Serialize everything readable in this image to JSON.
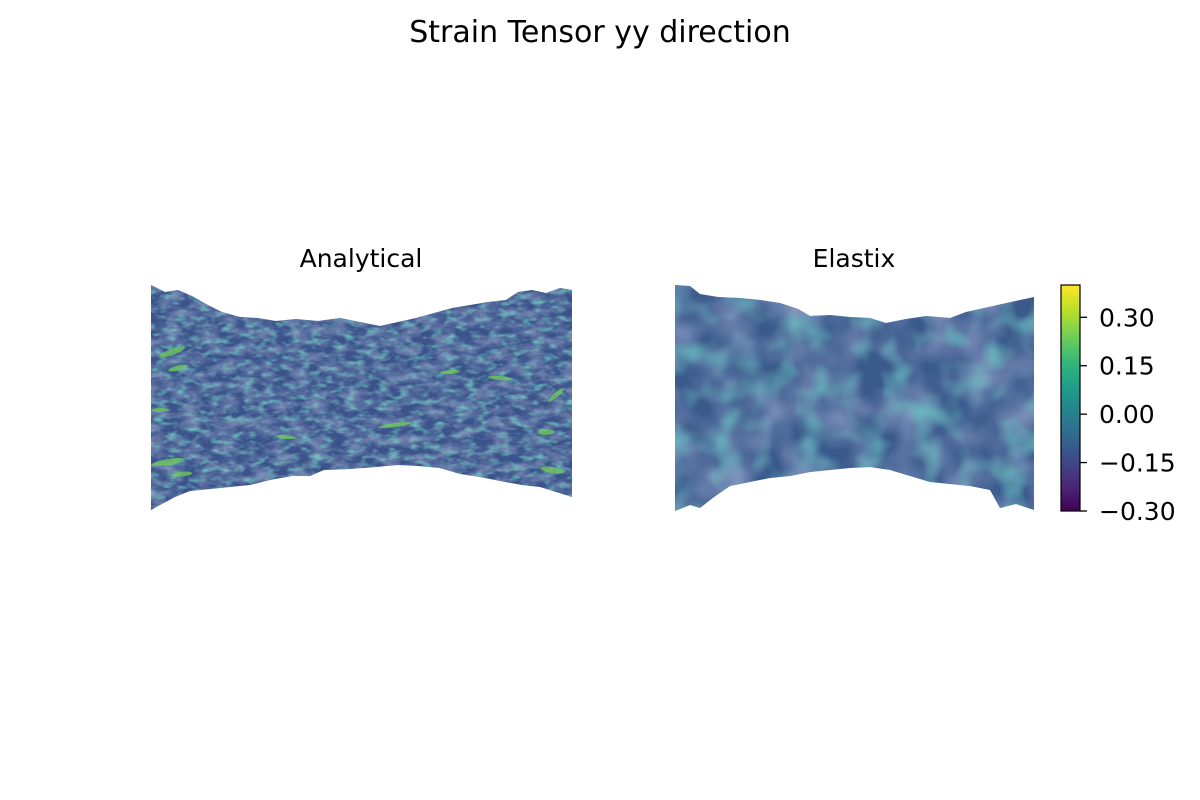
{
  "figure": {
    "title": "Strain Tensor yy direction"
  },
  "chart_data": [
    {
      "type": "heatmap",
      "title": "Analytical",
      "xlabel": "",
      "ylabel": "",
      "axes_visible": false,
      "colormap": "viridis",
      "value_range": [
        -0.3,
        0.4
      ],
      "typical_value": -0.08,
      "texture": "fine, streaky, high-variance"
    },
    {
      "type": "heatmap",
      "title": "Elastix",
      "xlabel": "",
      "ylabel": "",
      "axes_visible": false,
      "colormap": "viridis",
      "value_range": [
        -0.3,
        0.4
      ],
      "typical_value": -0.05,
      "texture": "smooth, blobby, low-variance"
    }
  ],
  "colorbar": {
    "colormap": "viridis",
    "range": [
      -0.3,
      0.4
    ],
    "ticks": [
      {
        "value": 0.3,
        "label": "0.30"
      },
      {
        "value": 0.15,
        "label": "0.15"
      },
      {
        "value": 0.0,
        "label": "0.00"
      },
      {
        "value": -0.15,
        "label": "−0.15"
      },
      {
        "value": -0.3,
        "label": "−0.30"
      }
    ]
  },
  "colors": {
    "viridis": [
      "#440154",
      "#482878",
      "#3e4989",
      "#31688e",
      "#26828e",
      "#1f9e89",
      "#35b779",
      "#6ece58",
      "#b5de2b",
      "#fde725"
    ]
  }
}
